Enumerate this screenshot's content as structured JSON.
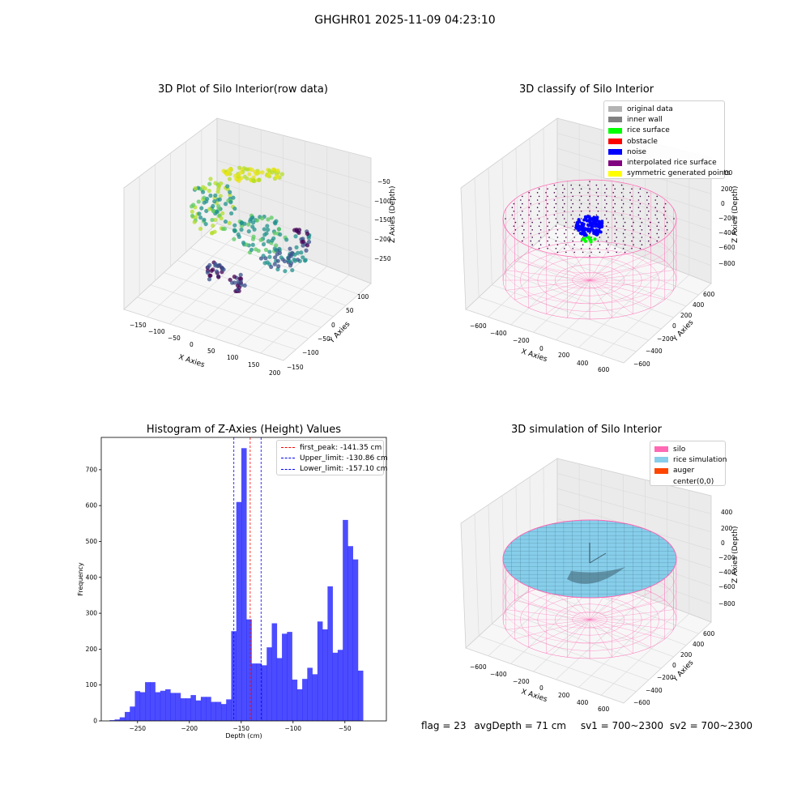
{
  "suptitle": "GHGHR01 2025-11-09 04:23:10",
  "panels": {
    "raw": {
      "title": "3D Plot of Silo Interior(row data)",
      "xlabel": "X Axies",
      "ylabel": "Y Axies",
      "zlabel": "Z Axies (Depth)",
      "xticks": [
        "−150",
        "−100",
        "−50",
        "0",
        "50",
        "100",
        "150",
        "200"
      ],
      "yticks": [
        "−150",
        "−100",
        "−50",
        "0",
        "50",
        "100"
      ],
      "zticks": [
        "−50",
        "−100",
        "−150",
        "−200",
        "−250"
      ]
    },
    "classify": {
      "title": "3D classify of Silo Interior",
      "xlabel": "X Axies",
      "ylabel": "Y Axies",
      "zlabel": "Z Axies (Depth)",
      "xticks": [
        "−600",
        "−400",
        "−200",
        "0",
        "200",
        "400",
        "600"
      ],
      "yticks": [
        "−600",
        "−400",
        "−200",
        "0",
        "200",
        "400",
        "600"
      ],
      "zticks": [
        "400",
        "200",
        "0",
        "−200",
        "−400",
        "−600",
        "−800"
      ],
      "legend": [
        {
          "label": "original data",
          "color": "#b3b3b3"
        },
        {
          "label": "inner wall",
          "color": "#808080"
        },
        {
          "label": "rice surface",
          "color": "#00ff00"
        },
        {
          "label": "obstacle",
          "color": "#ff0000"
        },
        {
          "label": "noise",
          "color": "#0000ff"
        },
        {
          "label": "interpolated rice surface",
          "color": "#800080"
        },
        {
          "label": "symmetric generated points",
          "color": "#ffff00"
        }
      ]
    },
    "simulation": {
      "title": "3D simulation of Silo Interior",
      "xlabel": "X Axies",
      "ylabel": "Y Axies",
      "zlabel": "Z Axies (Depth)",
      "xticks": [
        "−600",
        "−400",
        "−200",
        "0",
        "200",
        "400",
        "600"
      ],
      "yticks": [
        "−600",
        "−400",
        "−200",
        "0",
        "200",
        "400",
        "600"
      ],
      "zticks": [
        "400",
        "200",
        "0",
        "−200",
        "−400",
        "−600",
        "−800"
      ],
      "legend": [
        {
          "label": "silo",
          "color": "#ff69b4"
        },
        {
          "label": "rice simulation",
          "color": "#87ceeb"
        },
        {
          "label": "auger",
          "color": "#ff4500"
        },
        {
          "label": "center(0,0)",
          "color": "#ffffff"
        }
      ]
    }
  },
  "chart_data": {
    "type": "bar",
    "title": "Histogram of Z-Axies (Height) Values",
    "xlabel": "Depth (cm)",
    "ylabel": "Frequency",
    "xlim": [
      -285,
      -10
    ],
    "ylim": [
      0,
      790
    ],
    "xticks": [
      -250,
      -200,
      -150,
      -100,
      -50
    ],
    "yticks": [
      0,
      100,
      200,
      300,
      400,
      500,
      600,
      700
    ],
    "bar_color": "#0000ff",
    "bin_start": -277.0,
    "bin_width": 4.89,
    "values": [
      2,
      4,
      10,
      25,
      40,
      83,
      80,
      108,
      108,
      80,
      84,
      88,
      78,
      78,
      63,
      63,
      72,
      57,
      67,
      67,
      53,
      53,
      47,
      60,
      250,
      610,
      760,
      283,
      160,
      160,
      155,
      205,
      272,
      175,
      243,
      248,
      115,
      88,
      117,
      148,
      130,
      277,
      255,
      375,
      190,
      198,
      560,
      487,
      450,
      140
    ],
    "vlines": [
      {
        "label": "first_peak: -141.35 cm",
        "x": -141.35,
        "color": "#ff0000"
      },
      {
        "label": "Upper_limit: -130.86 cm",
        "x": -130.86,
        "color": "#0000ff"
      },
      {
        "label": "Lower_limit: -157.10 cm",
        "x": -157.1,
        "color": "#0000ff"
      }
    ],
    "legend_position": "upper right"
  },
  "footer": {
    "flag": "flag = 23",
    "avg": "avgDepth = 71 cm",
    "sv1": "sv1 = 700~2300",
    "sv2": "sv2 = 700~2300"
  }
}
